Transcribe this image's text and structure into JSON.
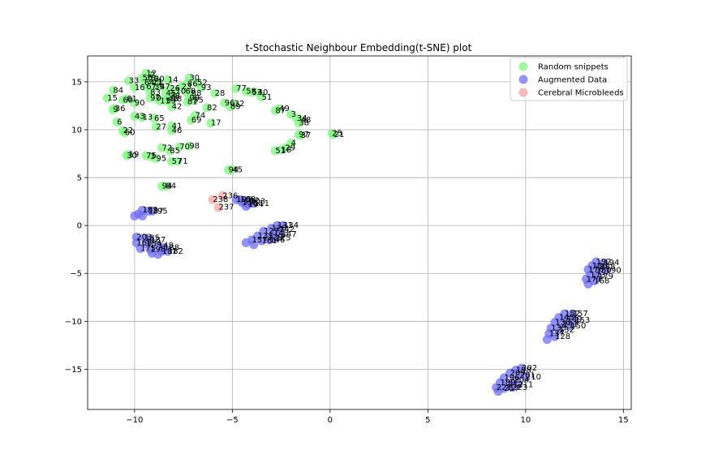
{
  "chart_data": {
    "type": "scatter",
    "title": "t-Stochastic Neighbour Embedding(t-SNE) plot",
    "xlabel": "",
    "ylabel": "",
    "xlim": [
      -12.4,
      15.4
    ],
    "ylim": [
      -19.2,
      17.7
    ],
    "xticks": [
      -10,
      -5,
      0,
      5,
      10,
      15
    ],
    "yticks": [
      -15,
      -10,
      -5,
      0,
      5,
      10,
      15
    ],
    "xtick_labels": [
      "−10",
      "−5",
      "0",
      "5",
      "10",
      "15"
    ],
    "ytick_labels": [
      "−15",
      "−10",
      "−5",
      "0",
      "5",
      "10",
      "15"
    ],
    "grid": true,
    "legend_position": "top-right",
    "series": [
      {
        "name": "Random snippets",
        "color": "#7ef77e",
        "points": [
          {
            "x": -9.4,
            "y": 15.9,
            "label": "12"
          },
          {
            "x": -9.2,
            "y": 15.7,
            "label": "2"
          },
          {
            "x": -9.6,
            "y": 15.4,
            "label": "56"
          },
          {
            "x": -9.3,
            "y": 15.3,
            "label": "26"
          },
          {
            "x": -9.0,
            "y": 15.3,
            "label": "20"
          },
          {
            "x": -8.3,
            "y": 15.2,
            "label": "14"
          },
          {
            "x": -7.2,
            "y": 15.4,
            "label": "30"
          },
          {
            "x": -6.8,
            "y": 14.9,
            "label": "52"
          },
          {
            "x": -7.3,
            "y": 14.8,
            "label": "86"
          },
          {
            "x": -10.3,
            "y": 15.1,
            "label": "33"
          },
          {
            "x": -9.5,
            "y": 14.9,
            "label": "64"
          },
          {
            "x": -9.1,
            "y": 14.9,
            "label": "21"
          },
          {
            "x": -8.8,
            "y": 15.0,
            "label": "1"
          },
          {
            "x": -10.0,
            "y": 14.4,
            "label": "16"
          },
          {
            "x": -9.4,
            "y": 14.5,
            "label": "67"
          },
          {
            "x": -9.0,
            "y": 14.5,
            "label": "39"
          },
          {
            "x": -8.7,
            "y": 14.5,
            "label": "47"
          },
          {
            "x": -8.2,
            "y": 14.3,
            "label": "26"
          },
          {
            "x": -7.6,
            "y": 14.5,
            "label": "23"
          },
          {
            "x": -6.6,
            "y": 14.4,
            "label": "93"
          },
          {
            "x": -7.9,
            "y": 14.0,
            "label": "10"
          },
          {
            "x": -7.4,
            "y": 14.0,
            "label": "68"
          },
          {
            "x": -7.1,
            "y": 13.8,
            "label": "88"
          },
          {
            "x": -8.4,
            "y": 13.8,
            "label": "45"
          },
          {
            "x": -8.2,
            "y": 13.5,
            "label": "78"
          },
          {
            "x": -11.1,
            "y": 14.1,
            "label": "84"
          },
          {
            "x": -9.2,
            "y": 13.9,
            "label": "83"
          },
          {
            "x": -9.2,
            "y": 13.3,
            "label": "97"
          },
          {
            "x": -8.9,
            "y": 13.3,
            "label": "0"
          },
          {
            "x": -8.3,
            "y": 13.2,
            "label": "48"
          },
          {
            "x": -8.1,
            "y": 13.2,
            "label": "18"
          },
          {
            "x": -7.2,
            "y": 13.3,
            "label": "99"
          },
          {
            "x": -7.0,
            "y": 13.1,
            "label": "55"
          },
          {
            "x": -7.3,
            "y": 12.9,
            "label": "81"
          },
          {
            "x": -8.7,
            "y": 13.0,
            "label": "11"
          },
          {
            "x": -8.4,
            "y": 13.0,
            "label": "59"
          },
          {
            "x": -11.4,
            "y": 13.3,
            "label": "15"
          },
          {
            "x": -10.6,
            "y": 13.1,
            "label": "60"
          },
          {
            "x": -10.4,
            "y": 13.2,
            "label": "61"
          },
          {
            "x": -10.0,
            "y": 12.8,
            "label": "90"
          },
          {
            "x": -8.1,
            "y": 12.4,
            "label": "42"
          },
          {
            "x": -6.3,
            "y": 12.3,
            "label": "82"
          },
          {
            "x": -5.4,
            "y": 12.8,
            "label": "96"
          },
          {
            "x": -4.9,
            "y": 12.7,
            "label": "32"
          },
          {
            "x": -5.1,
            "y": 12.4,
            "label": "89"
          },
          {
            "x": -11.0,
            "y": 12.2,
            "label": "36"
          },
          {
            "x": -11.1,
            "y": 12.1,
            "label": "9"
          },
          {
            "x": -5.9,
            "y": 13.8,
            "label": "28"
          },
          {
            "x": -4.8,
            "y": 14.3,
            "label": "77"
          },
          {
            "x": -4.3,
            "y": 14.0,
            "label": "58"
          },
          {
            "x": -4.0,
            "y": 13.9,
            "label": "53"
          },
          {
            "x": -3.7,
            "y": 13.9,
            "label": "40"
          },
          {
            "x": -3.5,
            "y": 13.4,
            "label": "51"
          },
          {
            "x": -2.6,
            "y": 12.2,
            "label": "49"
          },
          {
            "x": -2.8,
            "y": 12.0,
            "label": "87"
          },
          {
            "x": -2.0,
            "y": 11.6,
            "label": "3"
          },
          {
            "x": -1.7,
            "y": 11.2,
            "label": "34"
          },
          {
            "x": -1.5,
            "y": 11.0,
            "label": "48"
          },
          {
            "x": -1.6,
            "y": 10.7,
            "label": "38"
          },
          {
            "x": -10.0,
            "y": 11.4,
            "label": "43"
          },
          {
            "x": -9.6,
            "y": 11.3,
            "label": "13"
          },
          {
            "x": -9.0,
            "y": 11.2,
            "label": "65"
          },
          {
            "x": -6.9,
            "y": 11.5,
            "label": "74"
          },
          {
            "x": -7.1,
            "y": 11.0,
            "label": "69"
          },
          {
            "x": -6.1,
            "y": 10.7,
            "label": "17"
          },
          {
            "x": -10.9,
            "y": 10.8,
            "label": "6"
          },
          {
            "x": -8.1,
            "y": 10.4,
            "label": "41"
          },
          {
            "x": -8.9,
            "y": 10.3,
            "label": "27"
          },
          {
            "x": -8.1,
            "y": 9.9,
            "label": "46"
          },
          {
            "x": -10.6,
            "y": 9.9,
            "label": "22"
          },
          {
            "x": -10.5,
            "y": 9.7,
            "label": "60"
          },
          {
            "x": -1.6,
            "y": 9.5,
            "label": "97"
          },
          {
            "x": -1.5,
            "y": 9.4,
            "label": "37"
          },
          {
            "x": 0.1,
            "y": 9.6,
            "label": "25"
          },
          {
            "x": 0.2,
            "y": 9.5,
            "label": "21"
          },
          {
            "x": -2.0,
            "y": 8.6,
            "label": "4"
          },
          {
            "x": -2.3,
            "y": 8.1,
            "label": "29"
          },
          {
            "x": -2.5,
            "y": 7.9,
            "label": "18"
          },
          {
            "x": -2.8,
            "y": 7.8,
            "label": "51"
          },
          {
            "x": -7.2,
            "y": 8.3,
            "label": "98"
          },
          {
            "x": -7.7,
            "y": 8.2,
            "label": "70"
          },
          {
            "x": -8.6,
            "y": 8.1,
            "label": "72"
          },
          {
            "x": -8.2,
            "y": 7.8,
            "label": "85"
          },
          {
            "x": -10.3,
            "y": 7.4,
            "label": "19"
          },
          {
            "x": -10.4,
            "y": 7.3,
            "label": "30"
          },
          {
            "x": -9.4,
            "y": 7.3,
            "label": "75"
          },
          {
            "x": -9.2,
            "y": 7.2,
            "label": "3"
          },
          {
            "x": -8.9,
            "y": 7.0,
            "label": "95"
          },
          {
            "x": -8.1,
            "y": 6.7,
            "label": "57"
          },
          {
            "x": -7.8,
            "y": 6.7,
            "label": "71"
          },
          {
            "x": -5.2,
            "y": 5.8,
            "label": "94"
          },
          {
            "x": -5.0,
            "y": 5.8,
            "label": "45"
          },
          {
            "x": -8.6,
            "y": 4.1,
            "label": "94"
          },
          {
            "x": -8.4,
            "y": 4.1,
            "label": "84"
          }
        ]
      },
      {
        "name": "Augmented Data",
        "color": "#6f6ff5",
        "points": [
          {
            "x": -9.6,
            "y": 1.6,
            "label": "183"
          },
          {
            "x": -9.3,
            "y": 1.5,
            "label": "137"
          },
          {
            "x": -9.1,
            "y": 1.5,
            "label": "195"
          },
          {
            "x": -9.8,
            "y": 1.2,
            "label": ""
          },
          {
            "x": -10.0,
            "y": 1.0,
            "label": ""
          },
          {
            "x": -9.6,
            "y": 1.0,
            "label": ""
          },
          {
            "x": -9.9,
            "y": -1.2,
            "label": "203"
          },
          {
            "x": -9.5,
            "y": -1.3,
            "label": "185"
          },
          {
            "x": -9.2,
            "y": -1.5,
            "label": "187"
          },
          {
            "x": -9.9,
            "y": -1.8,
            "label": "168"
          },
          {
            "x": -9.4,
            "y": -1.9,
            "label": "184"
          },
          {
            "x": -8.8,
            "y": -2.1,
            "label": "148"
          },
          {
            "x": -8.5,
            "y": -2.3,
            "label": "188"
          },
          {
            "x": -9.7,
            "y": -2.4,
            "label": "175"
          },
          {
            "x": -9.2,
            "y": -2.5,
            "label": "198"
          },
          {
            "x": -8.6,
            "y": -2.7,
            "label": "181"
          },
          {
            "x": -8.3,
            "y": -2.7,
            "label": "182"
          },
          {
            "x": -9.1,
            "y": -2.9,
            "label": ""
          },
          {
            "x": -8.8,
            "y": -3.0,
            "label": ""
          },
          {
            "x": -4.8,
            "y": 2.7,
            "label": "105"
          },
          {
            "x": -4.6,
            "y": 2.7,
            "label": "108"
          },
          {
            "x": -4.4,
            "y": 2.6,
            "label": "102"
          },
          {
            "x": -4.1,
            "y": 2.5,
            "label": "103"
          },
          {
            "x": -4.5,
            "y": 2.4,
            "label": "110"
          },
          {
            "x": -4.2,
            "y": 2.2,
            "label": "104"
          },
          {
            "x": -3.9,
            "y": 2.3,
            "label": "111"
          },
          {
            "x": -4.3,
            "y": 2.0,
            "label": ""
          },
          {
            "x": -2.7,
            "y": 0.0,
            "label": "131"
          },
          {
            "x": -2.4,
            "y": 0.0,
            "label": "134"
          },
          {
            "x": -3.0,
            "y": -0.3,
            "label": "120"
          },
          {
            "x": -2.6,
            "y": -0.4,
            "label": "142"
          },
          {
            "x": -3.4,
            "y": -0.6,
            "label": "127"
          },
          {
            "x": -2.9,
            "y": -0.8,
            "label": "143"
          },
          {
            "x": -2.5,
            "y": -0.9,
            "label": "147"
          },
          {
            "x": -3.7,
            "y": -1.1,
            "label": "133"
          },
          {
            "x": -3.2,
            "y": -1.2,
            "label": "129"
          },
          {
            "x": -2.8,
            "y": -1.3,
            "label": "125"
          },
          {
            "x": -4.0,
            "y": -1.5,
            "label": "157"
          },
          {
            "x": -3.5,
            "y": -1.6,
            "label": "161"
          },
          {
            "x": -3.1,
            "y": -1.5,
            "label": "146"
          },
          {
            "x": -4.3,
            "y": -1.8,
            "label": ""
          },
          {
            "x": -3.9,
            "y": -2.0,
            "label": ""
          },
          {
            "x": 13.6,
            "y": -3.8,
            "label": "192"
          },
          {
            "x": 14.0,
            "y": -3.9,
            "label": "194"
          },
          {
            "x": 13.4,
            "y": -4.2,
            "label": "186"
          },
          {
            "x": 13.8,
            "y": -4.3,
            "label": "188"
          },
          {
            "x": 13.2,
            "y": -4.6,
            "label": "176"
          },
          {
            "x": 13.6,
            "y": -4.7,
            "label": "180"
          },
          {
            "x": 14.1,
            "y": -4.7,
            "label": "190"
          },
          {
            "x": 13.3,
            "y": -5.2,
            "label": "173"
          },
          {
            "x": 13.7,
            "y": -5.3,
            "label": "179"
          },
          {
            "x": 13.1,
            "y": -5.6,
            "label": "171"
          },
          {
            "x": 13.5,
            "y": -5.8,
            "label": "168"
          },
          {
            "x": 13.2,
            "y": -6.1,
            "label": ""
          },
          {
            "x": 12.0,
            "y": -9.2,
            "label": "152"
          },
          {
            "x": 12.4,
            "y": -9.2,
            "label": "157"
          },
          {
            "x": 11.7,
            "y": -9.6,
            "label": "145"
          },
          {
            "x": 12.1,
            "y": -9.8,
            "label": "149"
          },
          {
            "x": 12.5,
            "y": -9.9,
            "label": "153"
          },
          {
            "x": 11.5,
            "y": -10.1,
            "label": "138"
          },
          {
            "x": 11.9,
            "y": -10.3,
            "label": "141"
          },
          {
            "x": 12.3,
            "y": -10.5,
            "label": "150"
          },
          {
            "x": 11.3,
            "y": -10.7,
            "label": "135"
          },
          {
            "x": 11.7,
            "y": -10.9,
            "label": "132"
          },
          {
            "x": 11.2,
            "y": -11.3,
            "label": "137"
          },
          {
            "x": 11.5,
            "y": -11.6,
            "label": "128"
          },
          {
            "x": 11.1,
            "y": -11.9,
            "label": ""
          },
          {
            "x": 9.8,
            "y": -14.9,
            "label": "202"
          },
          {
            "x": 9.5,
            "y": -15.1,
            "label": "198"
          },
          {
            "x": 9.2,
            "y": -15.4,
            "label": "209"
          },
          {
            "x": 9.7,
            "y": -15.6,
            "label": "201"
          },
          {
            "x": 10.0,
            "y": -15.8,
            "label": "210"
          },
          {
            "x": 8.9,
            "y": -15.9,
            "label": "196"
          },
          {
            "x": 9.4,
            "y": -16.1,
            "label": "204"
          },
          {
            "x": 8.7,
            "y": -16.4,
            "label": "189"
          },
          {
            "x": 9.1,
            "y": -16.6,
            "label": "212"
          },
          {
            "x": 9.6,
            "y": -16.6,
            "label": "211"
          },
          {
            "x": 8.5,
            "y": -16.9,
            "label": "221"
          },
          {
            "x": 8.9,
            "y": -17.0,
            "label": "217"
          },
          {
            "x": 9.3,
            "y": -16.9,
            "label": "223"
          },
          {
            "x": 8.6,
            "y": -17.3,
            "label": ""
          }
        ]
      },
      {
        "name": "Cerebral Microbleeds",
        "color": "#f7a3a3",
        "points": [
          {
            "x": -6.0,
            "y": 2.7,
            "label": "238"
          },
          {
            "x": -5.7,
            "y": 1.9,
            "label": "237"
          },
          {
            "x": -5.5,
            "y": 3.1,
            "label": "236"
          }
        ]
      }
    ]
  }
}
